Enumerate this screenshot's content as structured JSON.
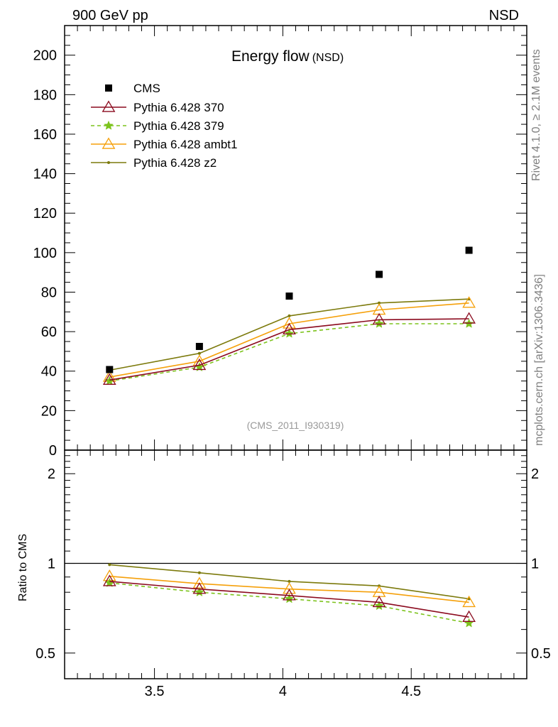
{
  "header": {
    "left": "900 GeV pp",
    "right": "NSD"
  },
  "side_labels": {
    "rivet": "Rivet 4.1.0, ≥ 2.1M events",
    "mcplots": "mcplots.cern.ch [arXiv:1306.3436]"
  },
  "chart_data": {
    "type": "line",
    "title": "Energy flow",
    "title_suffix": "(NSD)",
    "analysis": "(CMS_2011_I930319)",
    "x": [
      3.325,
      3.675,
      4.025,
      4.375,
      4.725
    ],
    "xlim": [
      3.15,
      4.95
    ],
    "xticks": [
      "3.5",
      "4",
      "4.5"
    ],
    "xtick_values": [
      3.5,
      4.0,
      4.5
    ],
    "main": {
      "ylim": [
        0,
        215
      ],
      "yticks": [
        "0",
        "20",
        "40",
        "60",
        "80",
        "100",
        "120",
        "140",
        "160",
        "180",
        "200"
      ],
      "ytick_values": [
        0,
        20,
        40,
        60,
        80,
        100,
        120,
        140,
        160,
        180,
        200
      ],
      "data": {
        "name": "CMS",
        "values": [
          40.8,
          52.5,
          78.0,
          89.0,
          101.2
        ]
      },
      "series": [
        {
          "name": "Pythia 6.428 370",
          "color": "#8b0a1e",
          "marker": "triangle-open",
          "dash": "none",
          "values": [
            35.5,
            43.0,
            61.0,
            66.0,
            66.5
          ]
        },
        {
          "name": "Pythia 6.428 379",
          "color": "#7cc31c",
          "marker": "star",
          "dash": "5,4",
          "values": [
            35.0,
            42.0,
            59.0,
            64.0,
            64.0
          ]
        },
        {
          "name": "Pythia 6.428 ambt1",
          "color": "#f5a00a",
          "marker": "triangle-open",
          "dash": "none",
          "values": [
            37.0,
            45.0,
            64.0,
            71.0,
            74.5
          ]
        },
        {
          "name": "Pythia 6.428 z2",
          "color": "#7c7a0c",
          "marker": "dot",
          "dash": "none",
          "values": [
            40.5,
            49.0,
            68.0,
            74.5,
            76.5
          ]
        }
      ]
    },
    "ratio": {
      "ylabel": "Ratio to CMS",
      "ylim": [
        0.41,
        2.4
      ],
      "scale": "log",
      "yticks": [
        "0.5",
        "1",
        "2"
      ],
      "ytick_values": [
        0.5,
        1,
        2
      ],
      "series": [
        {
          "name": "Pythia 6.428 370",
          "values": [
            0.87,
            0.82,
            0.78,
            0.74,
            0.66
          ]
        },
        {
          "name": "Pythia 6.428 379",
          "values": [
            0.86,
            0.8,
            0.76,
            0.72,
            0.63
          ]
        },
        {
          "name": "Pythia 6.428 ambt1",
          "values": [
            0.905,
            0.855,
            0.82,
            0.8,
            0.74
          ]
        },
        {
          "name": "Pythia 6.428 z2",
          "values": [
            0.99,
            0.93,
            0.87,
            0.84,
            0.76
          ]
        }
      ]
    }
  }
}
